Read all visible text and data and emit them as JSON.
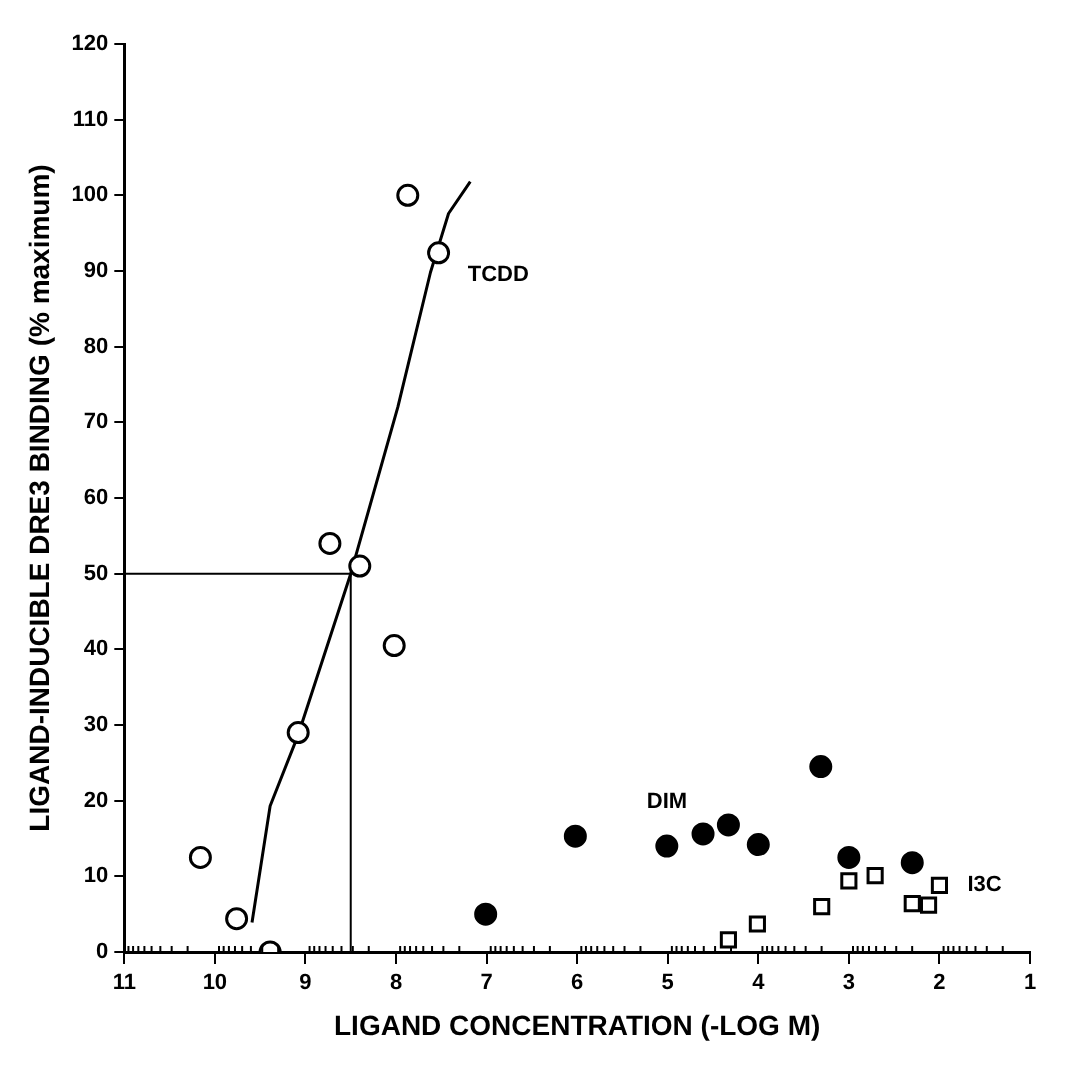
{
  "chart_data": {
    "type": "scatter",
    "xlabel": "LIGAND CONCENTRATION (-LOG M)",
    "ylabel": "LIGAND-INDUCIBLE DRE3 BINDING (% maximum)",
    "xlim": [
      11,
      1
    ],
    "xticks": [
      11,
      10,
      9,
      8,
      7,
      6,
      5,
      4,
      3,
      2,
      1
    ],
    "ylim": [
      0,
      120
    ],
    "yticks": [
      0,
      10,
      20,
      30,
      40,
      50,
      60,
      70,
      80,
      90,
      100,
      110,
      120
    ],
    "grid": false,
    "legend": false,
    "ref_lines": [
      {
        "axis": "y",
        "value": 50
      },
      {
        "axis": "x",
        "value": 8.5
      }
    ],
    "series": [
      {
        "name": "TCDD",
        "type": "scatter",
        "marker": "circle",
        "color": "#ffffff",
        "x": [
          10.16,
          9.76,
          9.39,
          9.08,
          8.73,
          8.4,
          8.02,
          7.87,
          7.53
        ],
        "values": [
          12.5,
          4.4,
          0,
          29,
          54,
          51,
          40.5,
          100,
          92.4
        ]
      },
      {
        "type": "line",
        "marker": "none",
        "color": "#000000",
        "x": [
          9.59,
          9.39,
          9.08,
          8.5,
          7.98,
          7.62,
          7.42,
          7.18
        ],
        "values": [
          3.9,
          19.3,
          28.7,
          50,
          72,
          89.8,
          97.6,
          101.8
        ]
      },
      {
        "name": "DIM",
        "type": "scatter",
        "marker": "circle",
        "color": "#000000",
        "x": [
          7.01,
          6.02,
          5.01,
          4.61,
          4.33,
          4.0,
          3.31,
          3.0,
          2.3
        ],
        "values": [
          5,
          15.3,
          14,
          15.6,
          16.8,
          14.2,
          24.5,
          12.5,
          11.8
        ]
      },
      {
        "name": "I3C",
        "type": "scatter",
        "marker": "square",
        "color": "#ffffff",
        "x": [
          4.33,
          4.01,
          3.3,
          3.0,
          2.71,
          2.3,
          2.12,
          2.0
        ],
        "values": [
          1.6,
          3.7,
          6,
          9.4,
          10.1,
          6.4,
          6.2,
          8.8
        ]
      }
    ]
  }
}
